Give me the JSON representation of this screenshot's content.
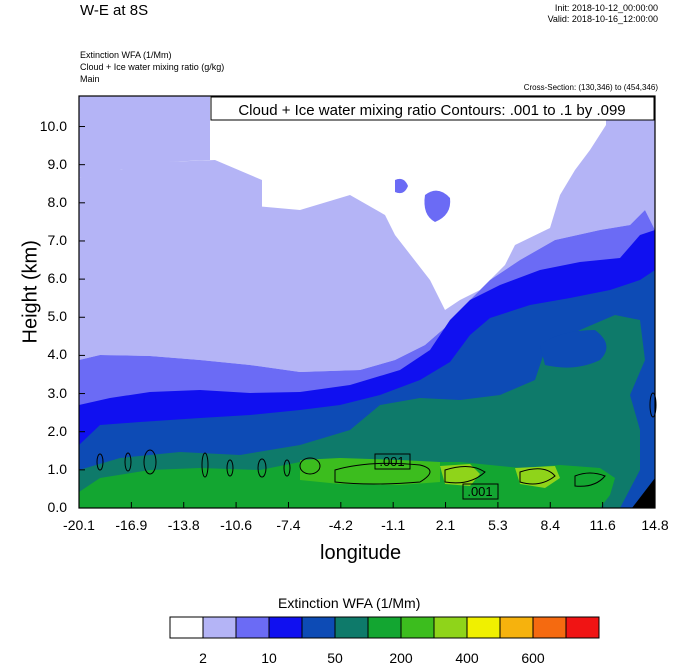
{
  "header": {
    "title": "W-E at 8S",
    "init": "Init: 2018-10-12_00:00:00",
    "valid": "Valid: 2018-10-16_12:00:00",
    "fields": [
      "Extinction WFA   (1/Mm)",
      "Cloud + Ice water mixing ratio   (g/kg)",
      "Main"
    ],
    "cross_section": "Cross-Section: (130,346) to (454,346)"
  },
  "chart_data": {
    "type": "heatmap",
    "xlabel": "longitude",
    "ylabel": "Height (km)",
    "x_ticks": [
      "-20.1",
      "-16.9",
      "-13.8",
      "-10.6",
      "-7.4",
      "-4.2",
      "-1.1",
      "2.1",
      "5.3",
      "8.4",
      "11.6",
      "14.8"
    ],
    "y_ticks": [
      "0.0",
      "1.0",
      "2.0",
      "3.0",
      "4.0",
      "5.0",
      "6.0",
      "7.0",
      "8.0",
      "9.0",
      "10.0"
    ],
    "xlim": [
      -20.1,
      14.8
    ],
    "ylim": [
      0.0,
      10.8
    ],
    "contour_note": "Cloud + Ice water mixing ratio Contours: .001 to .1 by .099",
    "contour_labels": [
      ".001",
      ".001"
    ],
    "colorbar": {
      "title": "Extinction WFA  (1/Mm)",
      "labels": [
        "2",
        "10",
        "50",
        "200",
        "400",
        "600"
      ],
      "colors": [
        "#ffffff",
        "#b4b4f6",
        "#6b6bf5",
        "#1010f0",
        "#0d4bb5",
        "#0e7a6a",
        "#13a631",
        "#3cbd1e",
        "#8fd41a",
        "#f0f000",
        "#f6b20d",
        "#f56a10",
        "#f01414"
      ]
    }
  }
}
